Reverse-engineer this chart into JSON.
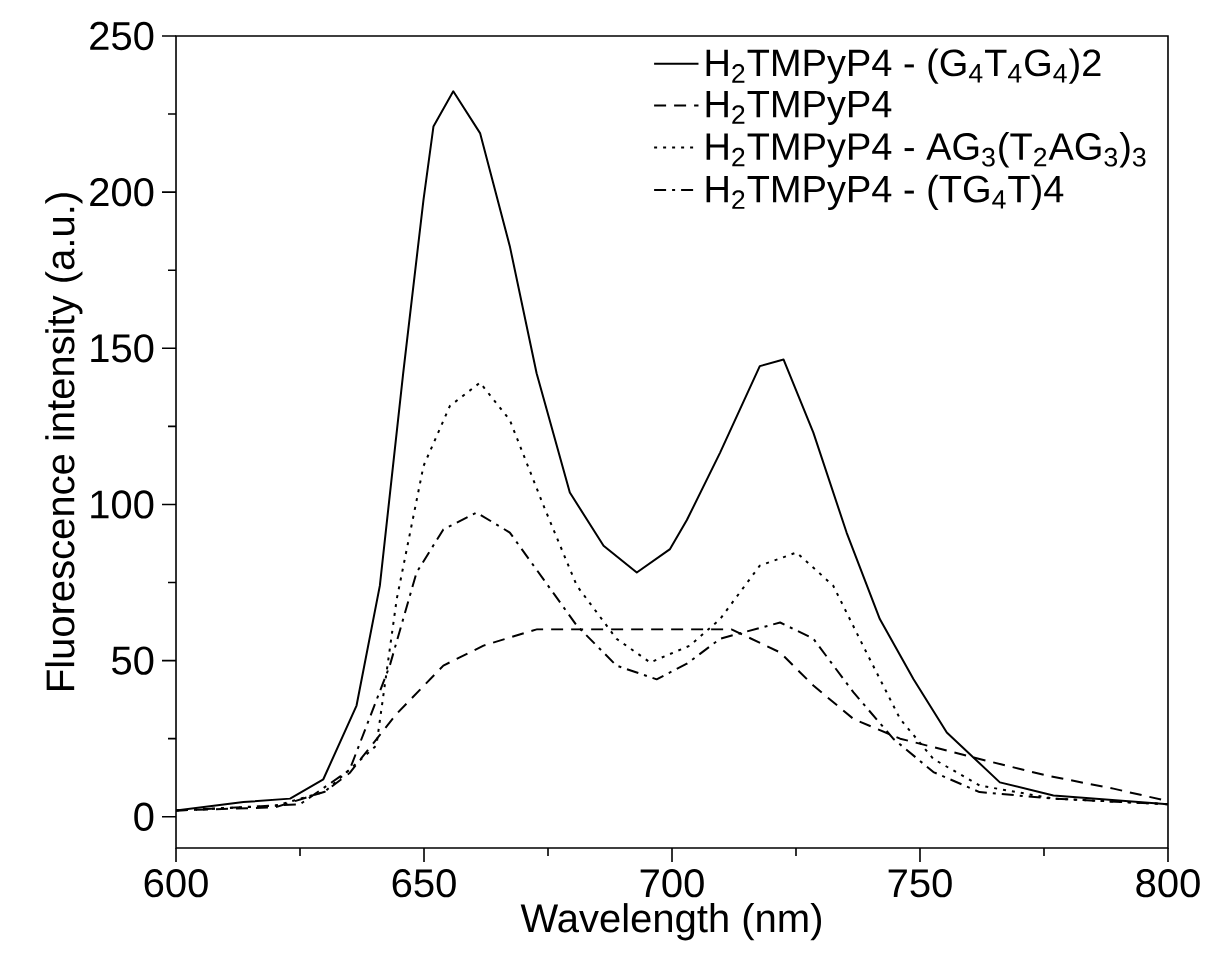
{
  "chart_data": {
    "type": "line",
    "xlabel": "Wavelength (nm)",
    "ylabel": "Fluorescence intensity (a.u.)",
    "xlim": [
      600,
      800
    ],
    "ylim": [
      -10,
      250
    ],
    "xticks": [
      600,
      {
        "value": 625,
        "label": null
      },
      650,
      {
        "value": 675,
        "label": null
      },
      700,
      {
        "value": 725,
        "label": null
      },
      750,
      {
        "value": 775,
        "label": null
      },
      800
    ],
    "yticks": [
      0,
      {
        "value": 25,
        "label": null
      },
      50,
      {
        "value": 75,
        "label": null
      },
      100,
      {
        "value": 125,
        "label": null
      },
      150,
      {
        "value": 175,
        "label": null
      },
      200,
      {
        "value": 225,
        "label": null
      },
      250
    ],
    "legend": "top right",
    "marker": "none",
    "grid": false,
    "series": [
      {
        "name": "H$_{2}$TMPyP4 - (G$_{4}$T$_{4}$G$_{4}$)2",
        "color": "#000000",
        "line_style": "solid",
        "x": [
          600,
          613.6,
          623,
          629.7,
          636.4,
          641.1,
          645.8,
          649.9,
          651.9,
          655.9,
          661.3,
          667.3,
          672.7,
          679.4,
          686.2,
          692.9,
          699.6,
          703,
          709.7,
          717.7,
          722.5,
          728.5,
          735.2,
          741.9,
          748.7,
          755.4,
          766.1,
          776.9,
          800
        ],
        "values": [
          2,
          4.7,
          5.8,
          12,
          35.6,
          74,
          142,
          197.6,
          221,
          232.3,
          218.9,
          182.7,
          142,
          103.8,
          86.8,
          78.2,
          85.7,
          95,
          116.6,
          144.3,
          146.4,
          123,
          91,
          63.3,
          44,
          27,
          11,
          6.8,
          4
        ]
      },
      {
        "name": "H$_{2}$TMPyP4",
        "color": "#000000",
        "line_style": "dashed",
        "x": [
          600,
          620,
          630,
          635,
          644.5,
          653.9,
          662,
          672.7,
          683.5,
          699.6,
          712,
          721.8,
          728.5,
          736.6,
          746,
          762,
          775.5,
          789,
          800
        ],
        "values": [
          2,
          3,
          8,
          14,
          33,
          48.4,
          54.8,
          60,
          60,
          60,
          60,
          52.6,
          42,
          31.3,
          25,
          18.5,
          13.2,
          9,
          5
        ]
      },
      {
        "name": "H$_{2}$TMPyP4 - AG$_{3}$(T$_{2}$AG$_{3}$)$_{3}$",
        "color": "#000000",
        "line_style": "dotted",
        "x": [
          600,
          620,
          630,
          640.4,
          644.5,
          649.9,
          655.2,
          661.3,
          667.3,
          674.1,
          680.8,
          688.8,
          695.6,
          703.6,
          709.7,
          717.7,
          725.1,
          732.5,
          739.2,
          746,
          752.7,
          762,
          776.9,
          800
        ],
        "values": [
          2,
          3.5,
          8,
          22.8,
          69.7,
          112.3,
          131.5,
          139,
          127,
          99.6,
          74,
          57,
          49.4,
          54.8,
          63.3,
          80.4,
          84.6,
          74,
          52.6,
          31.3,
          18.5,
          10,
          5.8,
          4
        ]
      },
      {
        "name": "H$_{2}$TMPyP4 - (TG$_{4}$T)4",
        "color": "#000000",
        "line_style": "dashdot",
        "x": [
          600,
          625,
          635,
          643.1,
          648.5,
          653.9,
          660.6,
          667.3,
          674.1,
          680.8,
          688.8,
          696.9,
          703,
          709.7,
          721.8,
          728.5,
          736.6,
          744.6,
          752.7,
          762,
          776.9,
          800
        ],
        "values": [
          2,
          4,
          15,
          48.4,
          78.2,
          92,
          97.4,
          91,
          76,
          61.2,
          48.4,
          44,
          49,
          57,
          62.2,
          57,
          39.8,
          25,
          14.3,
          7.9,
          5.8,
          4
        ]
      }
    ]
  }
}
